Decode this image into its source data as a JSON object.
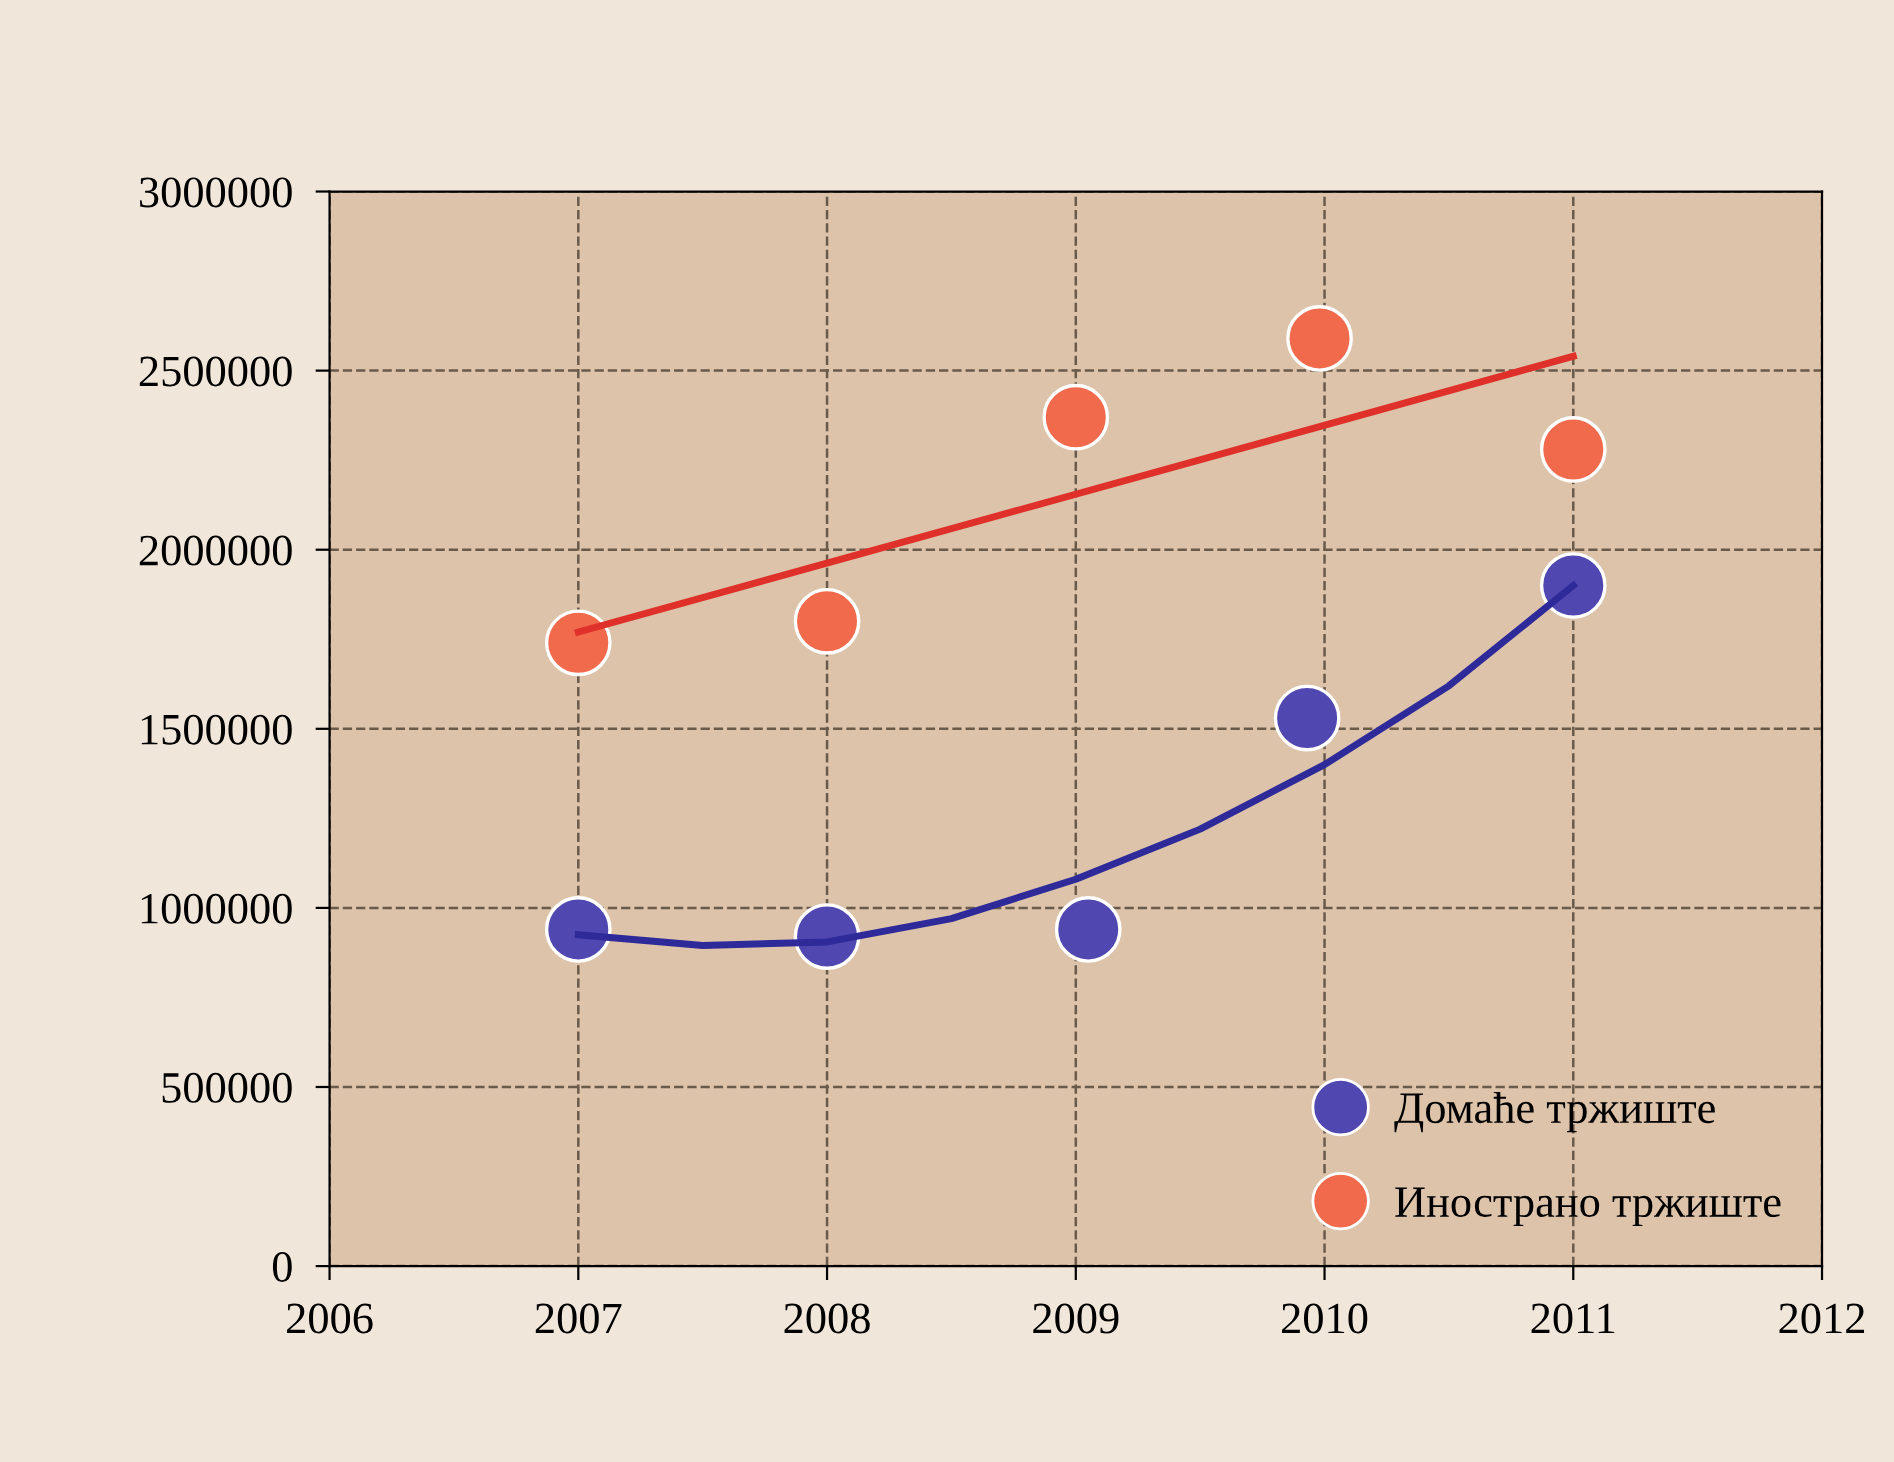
{
  "chart_data": {
    "type": "scatter",
    "xlim": [
      2006,
      2012
    ],
    "xticks": [
      2006,
      2007,
      2008,
      2009,
      2010,
      2011,
      2012
    ],
    "ylim": [
      0,
      3000000
    ],
    "yticks": [
      0,
      500000,
      1000000,
      1500000,
      2000000,
      2500000,
      3000000
    ],
    "grid": true,
    "legend": "bottom right",
    "series": [
      {
        "name": "Домаће тржиште",
        "color": "#5048b0",
        "marker": "circle",
        "x": [
          2007,
          2008,
          2009.05,
          2009.93,
          2011
        ],
        "values": [
          940000,
          920000,
          940000,
          1530000,
          1900000
        ]
      },
      {
        "name": "Инострано тржиште",
        "color": "#f26a4c",
        "marker": "circle",
        "x": [
          2007,
          2008,
          2009,
          2009.98,
          2011
        ],
        "values": [
          1740000,
          1800000,
          2370000,
          2590000,
          2280000
        ]
      },
      {
        "type": "line",
        "color": "#2e2a9a",
        "marker": "none",
        "x": [
          2007,
          2007.5,
          2008,
          2008.5,
          2009,
          2009.5,
          2010,
          2010.5,
          2011
        ],
        "values": [
          925000,
          895000,
          905000,
          970000,
          1080000,
          1220000,
          1400000,
          1620000,
          1900000
        ]
      },
      {
        "type": "line",
        "color": "#e0302a",
        "marker": "none",
        "x": [
          2007,
          2011
        ],
        "values": [
          1770000,
          2540000
        ]
      }
    ]
  }
}
